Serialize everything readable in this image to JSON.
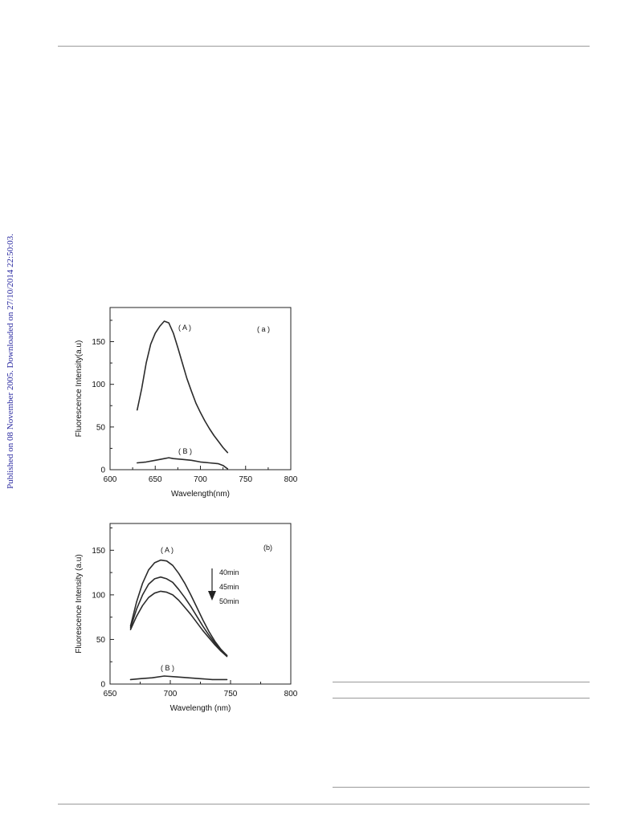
{
  "side_note": "Published on 08 November 2005. Downloaded on 27/10/2014 22:50:03.",
  "colors": {
    "side_note": "#2a2aa0",
    "curve": "#2b2b2b",
    "rule": "#9a9a9a"
  },
  "chart_data": [
    {
      "type": "line",
      "title": "",
      "panel_label": "( a )",
      "xlabel": "Wavelength(nm)",
      "ylabel": "Fluorescence Intensity(a.u)",
      "xlim": [
        600,
        800
      ],
      "ylim": [
        0,
        190
      ],
      "xticks": [
        600,
        650,
        700,
        750,
        800
      ],
      "yticks": [
        0,
        50,
        100,
        150
      ],
      "grid": false,
      "series": [
        {
          "name": "( A )",
          "x": [
            630,
            635,
            640,
            645,
            650,
            655,
            660,
            665,
            670,
            675,
            680,
            685,
            690,
            695,
            700,
            705,
            710,
            715,
            720,
            725,
            730
          ],
          "y": [
            70,
            95,
            125,
            147,
            160,
            168,
            174,
            172,
            160,
            143,
            125,
            107,
            92,
            78,
            67,
            57,
            48,
            40,
            33,
            26,
            20
          ]
        },
        {
          "name": "( B )",
          "x": [
            630,
            640,
            650,
            660,
            665,
            670,
            680,
            690,
            700,
            710,
            720,
            725,
            730
          ],
          "y": [
            8,
            9,
            11,
            13,
            14,
            13,
            12,
            11,
            9,
            8,
            7,
            5,
            1
          ]
        }
      ]
    },
    {
      "type": "line",
      "title": "",
      "panel_label": "(b)",
      "xlabel": "Wavelength (nm)",
      "ylabel": "Fluorescence Intensity (a.u)",
      "xlim": [
        650,
        800
      ],
      "ylim": [
        0,
        180
      ],
      "xticks": [
        650,
        700,
        750,
        800
      ],
      "yticks": [
        0,
        50,
        100,
        150
      ],
      "grid": false,
      "annotations": {
        "curve_A": "( A )",
        "curve_B": "( B )",
        "times": [
          "40min",
          "45min",
          "50min"
        ],
        "arrow": "down"
      },
      "series": [
        {
          "name": "40min",
          "x": [
            667,
            672,
            677,
            682,
            687,
            692,
            697,
            702,
            707,
            712,
            717,
            722,
            727,
            732,
            737,
            742,
            747
          ],
          "y": [
            65,
            92,
            113,
            128,
            136,
            139,
            138,
            133,
            124,
            113,
            100,
            86,
            72,
            59,
            48,
            39,
            32
          ]
        },
        {
          "name": "45min",
          "x": [
            667,
            672,
            677,
            682,
            687,
            692,
            697,
            702,
            707,
            712,
            717,
            722,
            727,
            732,
            737,
            742,
            747
          ],
          "y": [
            63,
            84,
            100,
            112,
            118,
            120,
            118,
            114,
            106,
            97,
            87,
            76,
            65,
            55,
            46,
            38,
            32
          ]
        },
        {
          "name": "50min",
          "x": [
            667,
            672,
            677,
            682,
            687,
            692,
            697,
            702,
            707,
            712,
            717,
            722,
            727,
            732,
            737,
            742,
            747
          ],
          "y": [
            61,
            76,
            88,
            97,
            102,
            104,
            103,
            100,
            94,
            86,
            78,
            69,
            60,
            52,
            44,
            37,
            31
          ]
        },
        {
          "name": "( B )",
          "x": [
            667,
            675,
            685,
            695,
            705,
            715,
            725,
            735,
            747
          ],
          "y": [
            5,
            6,
            7,
            9,
            8,
            7,
            6,
            5,
            5
          ]
        }
      ]
    }
  ]
}
